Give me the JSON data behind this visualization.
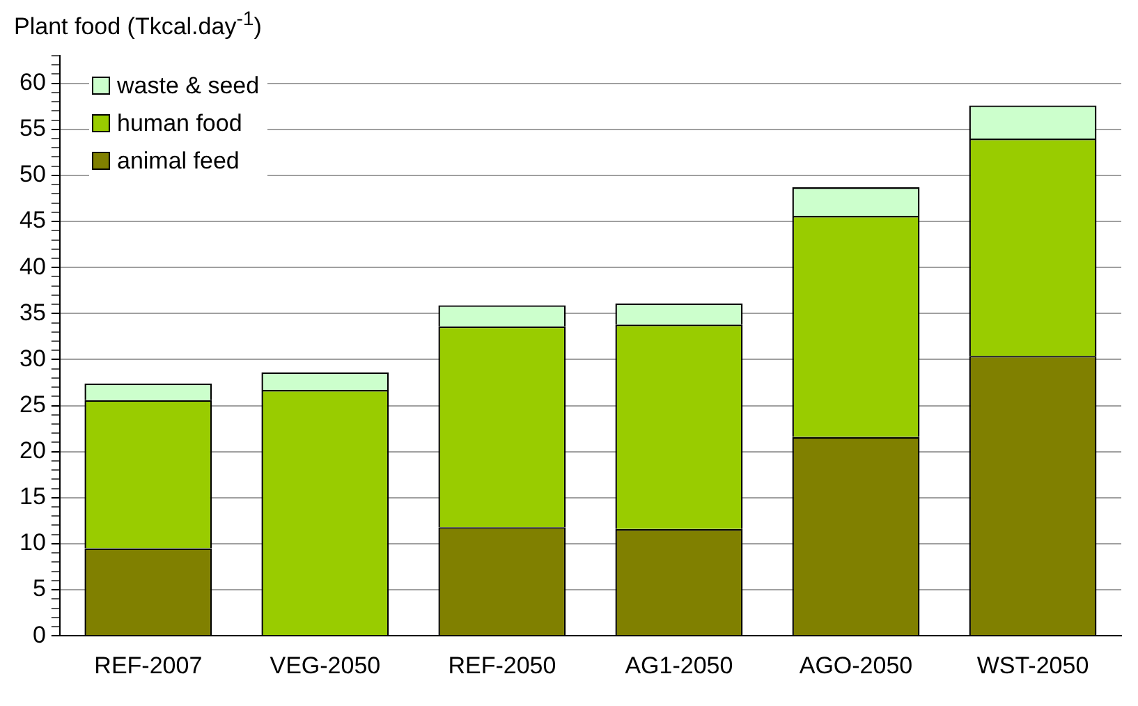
{
  "chart_data": {
    "type": "bar",
    "ylabel": "Plant food (Tkcal.day$^{-1}$)",
    "stacked": true,
    "categories": [
      "REF-2007",
      "VEG-2050",
      "REF-2050",
      "AG1-2050",
      "AGO-2050",
      "WST-2050"
    ],
    "series": [
      {
        "name": "animal feed",
        "color": "#808000",
        "values": [
          9.5,
          0,
          11.8,
          11.6,
          21.6,
          30.4
        ]
      },
      {
        "name": "human food",
        "color": "#99cc00",
        "values": [
          16.1,
          26.7,
          21.8,
          22.2,
          24.0,
          23.6
        ]
      },
      {
        "name": "waste & seed",
        "color": "#ccffcc",
        "values": [
          1.8,
          1.9,
          2.3,
          2.3,
          3.1,
          3.6
        ]
      }
    ],
    "ylim": [
      0,
      63
    ],
    "yticks": [
      0,
      {
        "value": 1,
        "label": null
      },
      {
        "value": 2,
        "label": null
      },
      {
        "value": 3,
        "label": null
      },
      {
        "value": 4,
        "label": null
      },
      5,
      {
        "value": 6,
        "label": null
      },
      {
        "value": 7,
        "label": null
      },
      {
        "value": 8,
        "label": null
      },
      {
        "value": 9,
        "label": null
      },
      10,
      {
        "value": 11,
        "label": null
      },
      {
        "value": 12,
        "label": null
      },
      {
        "value": 13,
        "label": null
      },
      {
        "value": 14,
        "label": null
      },
      15,
      {
        "value": 16,
        "label": null
      },
      {
        "value": 17,
        "label": null
      },
      {
        "value": 18,
        "label": null
      },
      {
        "value": 19,
        "label": null
      },
      20,
      {
        "value": 21,
        "label": null
      },
      {
        "value": 22,
        "label": null
      },
      {
        "value": 23,
        "label": null
      },
      {
        "value": 24,
        "label": null
      },
      25,
      {
        "value": 26,
        "label": null
      },
      {
        "value": 27,
        "label": null
      },
      {
        "value": 28,
        "label": null
      },
      {
        "value": 29,
        "label": null
      },
      30,
      {
        "value": 31,
        "label": null
      },
      {
        "value": 32,
        "label": null
      },
      {
        "value": 33,
        "label": null
      },
      {
        "value": 34,
        "label": null
      },
      35,
      {
        "value": 36,
        "label": null
      },
      {
        "value": 37,
        "label": null
      },
      {
        "value": 38,
        "label": null
      },
      {
        "value": 39,
        "label": null
      },
      40,
      {
        "value": 41,
        "label": null
      },
      {
        "value": 42,
        "label": null
      },
      {
        "value": 43,
        "label": null
      },
      {
        "value": 44,
        "label": null
      },
      45,
      {
        "value": 46,
        "label": null
      },
      {
        "value": 47,
        "label": null
      },
      {
        "value": 48,
        "label": null
      },
      {
        "value": 49,
        "label": null
      },
      50,
      {
        "value": 51,
        "label": null
      },
      {
        "value": 52,
        "label": null
      },
      {
        "value": 53,
        "label": null
      },
      {
        "value": 54,
        "label": null
      },
      55,
      {
        "value": 56,
        "label": null
      },
      {
        "value": 57,
        "label": null
      },
      {
        "value": 58,
        "label": null
      },
      {
        "value": 59,
        "label": null
      },
      60,
      {
        "value": 61,
        "label": null
      },
      {
        "value": 62,
        "label": null
      },
      {
        "value": 63,
        "label": null
      }
    ],
    "grid": "y",
    "legend": "top left"
  }
}
